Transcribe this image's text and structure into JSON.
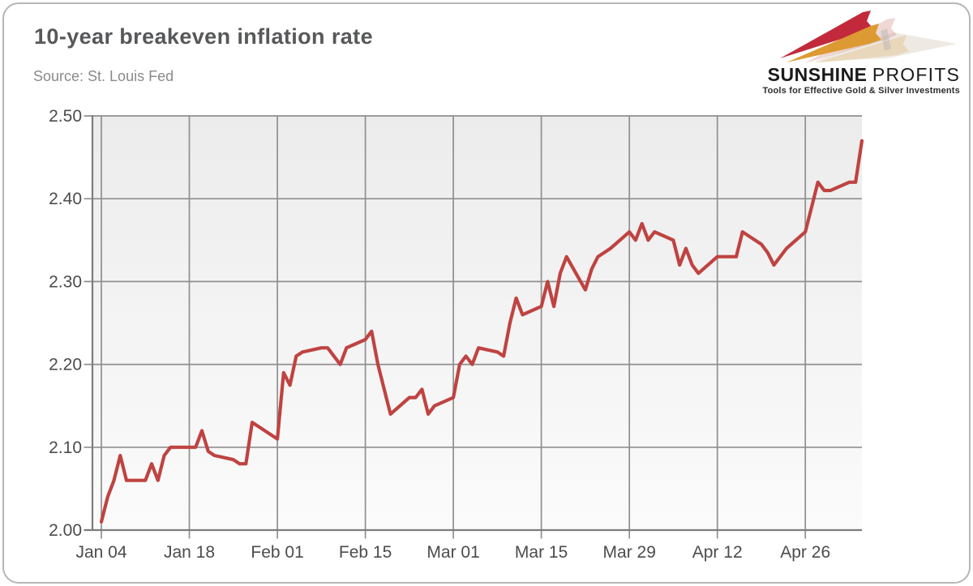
{
  "header": {
    "title": "10-year breakeven inflation rate",
    "source": "Source: St. Louis Fed"
  },
  "logo": {
    "brand_primary": "SUNSHINE",
    "brand_secondary": "PROFITS",
    "tagline": "Tools for Effective Gold & Silver Investments",
    "mark_colors": {
      "red": "#c22a3c",
      "gold": "#dd9a33",
      "shadow": "#d9d0c0"
    }
  },
  "chart_data": {
    "type": "line",
    "title": "10-year breakeven inflation rate",
    "source": "Source: St. Louis Fed",
    "series_name": "10-year breakeven inflation rate",
    "line_color": "#bf4341",
    "grid": true,
    "legend": "none",
    "ylim": [
      2.0,
      2.5
    ],
    "yticks": [
      2.0,
      2.1,
      2.2,
      2.3,
      2.4,
      2.5
    ],
    "ytick_labels": [
      "2.00",
      "2.10",
      "2.20",
      "2.30",
      "2.40",
      "2.50"
    ],
    "xtick_labels": [
      "Jan 04",
      "Jan 18",
      "Feb 01",
      "Feb 15",
      "Mar 01",
      "Mar 15",
      "Mar 29",
      "Apr 12",
      "Apr 26"
    ],
    "xtick_days": [
      0,
      14,
      28,
      42,
      56,
      70,
      84,
      98,
      112
    ],
    "x_axis_span_days": 121,
    "points": [
      [
        "Jan 04",
        0,
        2.01
      ],
      [
        "Jan 05",
        1,
        2.04
      ],
      [
        "Jan 06",
        2,
        2.06
      ],
      [
        "Jan 07",
        3,
        2.09
      ],
      [
        "Jan 08",
        4,
        2.06
      ],
      [
        "Jan 11",
        7,
        2.06
      ],
      [
        "Jan 12",
        8,
        2.08
      ],
      [
        "Jan 13",
        9,
        2.06
      ],
      [
        "Jan 14",
        10,
        2.09
      ],
      [
        "Jan 15",
        11,
        2.1
      ],
      [
        "Jan 18",
        14,
        2.1
      ],
      [
        "Jan 19",
        15,
        2.1
      ],
      [
        "Jan 20",
        16,
        2.12
      ],
      [
        "Jan 21",
        17,
        2.095
      ],
      [
        "Jan 22",
        18,
        2.09
      ],
      [
        "Jan 25",
        21,
        2.085
      ],
      [
        "Jan 26",
        22,
        2.08
      ],
      [
        "Jan 27",
        23,
        2.08
      ],
      [
        "Jan 28",
        24,
        2.13
      ],
      [
        "Jan 29",
        25,
        2.125
      ],
      [
        "Feb 01",
        28,
        2.11
      ],
      [
        "Feb 02",
        29,
        2.19
      ],
      [
        "Feb 03",
        30,
        2.175
      ],
      [
        "Feb 04",
        31,
        2.21
      ],
      [
        "Feb 05",
        32,
        2.215
      ],
      [
        "Feb 08",
        35,
        2.22
      ],
      [
        "Feb 09",
        36,
        2.22
      ],
      [
        "Feb 10",
        37,
        2.21
      ],
      [
        "Feb 11",
        38,
        2.2
      ],
      [
        "Feb 12",
        39,
        2.22
      ],
      [
        "Feb 15",
        42,
        2.23
      ],
      [
        "Feb 16",
        43,
        2.24
      ],
      [
        "Feb 17",
        44,
        2.2
      ],
      [
        "Feb 18",
        45,
        2.17
      ],
      [
        "Feb 19",
        46,
        2.14
      ],
      [
        "Feb 22",
        49,
        2.16
      ],
      [
        "Feb 23",
        50,
        2.16
      ],
      [
        "Feb 24",
        51,
        2.17
      ],
      [
        "Feb 25",
        52,
        2.14
      ],
      [
        "Feb 26",
        53,
        2.15
      ],
      [
        "Mar 01",
        56,
        2.16
      ],
      [
        "Mar 02",
        57,
        2.2
      ],
      [
        "Mar 03",
        58,
        2.21
      ],
      [
        "Mar 04",
        59,
        2.2
      ],
      [
        "Mar 05",
        60,
        2.22
      ],
      [
        "Mar 08",
        63,
        2.215
      ],
      [
        "Mar 09",
        64,
        2.21
      ],
      [
        "Mar 10",
        65,
        2.25
      ],
      [
        "Mar 11",
        66,
        2.28
      ],
      [
        "Mar 12",
        67,
        2.26
      ],
      [
        "Mar 15",
        70,
        2.27
      ],
      [
        "Mar 16",
        71,
        2.3
      ],
      [
        "Mar 17",
        72,
        2.27
      ],
      [
        "Mar 18",
        73,
        2.31
      ],
      [
        "Mar 19",
        74,
        2.33
      ],
      [
        "Mar 22",
        77,
        2.29
      ],
      [
        "Mar 23",
        78,
        2.315
      ],
      [
        "Mar 24",
        79,
        2.33
      ],
      [
        "Mar 25",
        80,
        2.335
      ],
      [
        "Mar 26",
        81,
        2.34
      ],
      [
        "Mar 29",
        84,
        2.36
      ],
      [
        "Mar 30",
        85,
        2.35
      ],
      [
        "Mar 31",
        86,
        2.37
      ],
      [
        "Apr 01",
        87,
        2.35
      ],
      [
        "Apr 02",
        88,
        2.36
      ],
      [
        "Apr 05",
        91,
        2.35
      ],
      [
        "Apr 06",
        92,
        2.32
      ],
      [
        "Apr 07",
        93,
        2.34
      ],
      [
        "Apr 08",
        94,
        2.32
      ],
      [
        "Apr 09",
        95,
        2.31
      ],
      [
        "Apr 12",
        98,
        2.33
      ],
      [
        "Apr 13",
        99,
        2.33
      ],
      [
        "Apr 14",
        100,
        2.33
      ],
      [
        "Apr 15",
        101,
        2.33
      ],
      [
        "Apr 16",
        102,
        2.36
      ],
      [
        "Apr 19",
        105,
        2.345
      ],
      [
        "Apr 20",
        106,
        2.335
      ],
      [
        "Apr 21",
        107,
        2.32
      ],
      [
        "Apr 22",
        108,
        2.33
      ],
      [
        "Apr 23",
        109,
        2.34
      ],
      [
        "Apr 26",
        112,
        2.36
      ],
      [
        "Apr 27",
        113,
        2.39
      ],
      [
        "Apr 28",
        114,
        2.42
      ],
      [
        "Apr 29",
        115,
        2.41
      ],
      [
        "Apr 30",
        116,
        2.41
      ],
      [
        "May 03",
        119,
        2.42
      ],
      [
        "May 04",
        120,
        2.42
      ],
      [
        "May 05",
        121,
        2.47
      ]
    ]
  }
}
